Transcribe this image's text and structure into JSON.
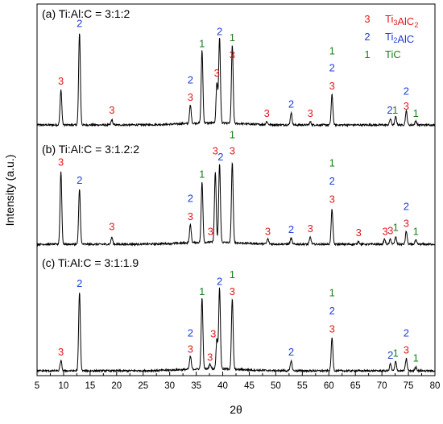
{
  "chart_data": {
    "type": "line",
    "xlabel": "2θ",
    "ylabel": "Intensity (a.u.)",
    "xlim": [
      5,
      80
    ],
    "x_ticks": [
      "5",
      "10",
      "15",
      "20",
      "25",
      "30",
      "35",
      "40",
      "45",
      "50",
      "55",
      "60",
      "65",
      "70",
      "75",
      "80"
    ],
    "legend": [
      {
        "marker": "3",
        "label": "Ti",
        "sub1": "3",
        "label_mid": "AlC",
        "sub2": "2",
        "color": "#e41a1c"
      },
      {
        "marker": "2",
        "label": "Ti",
        "sub1": "2",
        "label_mid": "AlC",
        "sub2": "",
        "color": "#1f3fd6"
      },
      {
        "marker": "1",
        "label": "TiC",
        "sub1": "",
        "label_mid": "",
        "sub2": "",
        "color": "#1a7f1a"
      }
    ],
    "colors": {
      "3": "#e41a1c",
      "2": "#1f3fd6",
      "1": "#1a7f1a"
    },
    "panels": [
      {
        "title": "(a) Ti:Al:C = 3:1:2",
        "peaks": [
          [
            9.5,
            0.35
          ],
          [
            13.0,
            0.92
          ],
          [
            19.1,
            0.05
          ],
          [
            33.9,
            0.18
          ],
          [
            36.1,
            0.72
          ],
          [
            38.9,
            0.4
          ],
          [
            39.4,
            0.85
          ],
          [
            41.8,
            0.78
          ],
          [
            48.3,
            0.03
          ],
          [
            52.9,
            0.12
          ],
          [
            56.5,
            0.03
          ],
          [
            60.6,
            0.3
          ],
          [
            71.6,
            0.06
          ],
          [
            72.6,
            0.08
          ],
          [
            74.6,
            0.14
          ],
          [
            76.4,
            0.04
          ]
        ],
        "labels": [
          {
            "x": 9.5,
            "t": "3",
            "lvl": 0.37
          },
          {
            "x": 13.0,
            "t": "2",
            "lvl": 0.94
          },
          {
            "x": 19.1,
            "t": "3",
            "lvl": 0.08
          },
          {
            "x": 33.9,
            "t": "3",
            "lvl": 0.21
          },
          {
            "x": 33.9,
            "t": "2",
            "lvl": 0.38
          },
          {
            "x": 36.1,
            "t": "1",
            "lvl": 0.74
          },
          {
            "x": 38.9,
            "t": "3",
            "lvl": 0.45
          },
          {
            "x": 39.4,
            "t": "2",
            "lvl": 0.86
          },
          {
            "x": 41.8,
            "t": "3",
            "lvl": 0.63
          },
          {
            "x": 41.8,
            "t": "1",
            "lvl": 0.8
          },
          {
            "x": 48.3,
            "t": "3",
            "lvl": 0.05
          },
          {
            "x": 52.9,
            "t": "2",
            "lvl": 0.14
          },
          {
            "x": 56.5,
            "t": "3",
            "lvl": 0.05
          },
          {
            "x": 60.6,
            "t": "3",
            "lvl": 0.32
          },
          {
            "x": 60.6,
            "t": "2",
            "lvl": 0.5
          },
          {
            "x": 60.6,
            "t": "1",
            "lvl": 0.67
          },
          {
            "x": 71.5,
            "t": "2",
            "lvl": 0.08
          },
          {
            "x": 72.5,
            "t": "1",
            "lvl": 0.08
          },
          {
            "x": 74.6,
            "t": "3",
            "lvl": 0.12
          },
          {
            "x": 74.6,
            "t": "2",
            "lvl": 0.27
          },
          {
            "x": 76.4,
            "t": "1",
            "lvl": 0.05
          }
        ]
      },
      {
        "title": "(b) Ti:Al:C = 3:1.2:2",
        "peaks": [
          [
            9.5,
            0.72
          ],
          [
            13.0,
            0.55
          ],
          [
            19.1,
            0.07
          ],
          [
            33.9,
            0.18
          ],
          [
            36.1,
            0.6
          ],
          [
            38.6,
            0.7
          ],
          [
            39.4,
            0.78
          ],
          [
            41.8,
            0.8
          ],
          [
            48.5,
            0.05
          ],
          [
            52.9,
            0.06
          ],
          [
            56.5,
            0.07
          ],
          [
            60.6,
            0.35
          ],
          [
            65.6,
            0.03
          ],
          [
            70.5,
            0.05
          ],
          [
            71.6,
            0.05
          ],
          [
            72.6,
            0.07
          ],
          [
            74.6,
            0.13
          ],
          [
            76.4,
            0.04
          ]
        ],
        "labels": [
          {
            "x": 9.5,
            "t": "3",
            "lvl": 0.75
          },
          {
            "x": 13.0,
            "t": "2",
            "lvl": 0.57
          },
          {
            "x": 19.1,
            "t": "3",
            "lvl": 0.11
          },
          {
            "x": 33.9,
            "t": "3",
            "lvl": 0.21
          },
          {
            "x": 33.9,
            "t": "2",
            "lvl": 0.39
          },
          {
            "x": 36.1,
            "t": "1",
            "lvl": 0.63
          },
          {
            "x": 37.7,
            "t": "3",
            "lvl": 0.06
          },
          {
            "x": 38.6,
            "t": "3",
            "lvl": 0.86
          },
          {
            "x": 39.6,
            "t": "2",
            "lvl": 0.8
          },
          {
            "x": 41.8,
            "t": "3",
            "lvl": 0.86
          },
          {
            "x": 41.8,
            "t": "1",
            "lvl": 1.02
          },
          {
            "x": 48.5,
            "t": "3",
            "lvl": 0.06
          },
          {
            "x": 52.9,
            "t": "2",
            "lvl": 0.08
          },
          {
            "x": 56.5,
            "t": "3",
            "lvl": 0.09
          },
          {
            "x": 60.6,
            "t": "3",
            "lvl": 0.38
          },
          {
            "x": 60.6,
            "t": "2",
            "lvl": 0.56
          },
          {
            "x": 60.6,
            "t": "1",
            "lvl": 0.74
          },
          {
            "x": 65.6,
            "t": "3",
            "lvl": 0.05
          },
          {
            "x": 70.6,
            "t": "3",
            "lvl": 0.06
          },
          {
            "x": 71.6,
            "t": "3",
            "lvl": 0.07
          },
          {
            "x": 72.6,
            "t": "1",
            "lvl": 0.1
          },
          {
            "x": 74.6,
            "t": "3",
            "lvl": 0.14
          },
          {
            "x": 74.6,
            "t": "2",
            "lvl": 0.31
          },
          {
            "x": 76.4,
            "t": "1",
            "lvl": 0.06
          }
        ]
      },
      {
        "title": "(c) Ti:Al:C = 3:1:1.9",
        "peaks": [
          [
            9.5,
            0.1
          ],
          [
            13.0,
            0.78
          ],
          [
            33.9,
            0.13
          ],
          [
            36.1,
            0.7
          ],
          [
            37.6,
            0.05
          ],
          [
            38.9,
            0.3
          ],
          [
            39.4,
            0.8
          ],
          [
            41.8,
            0.7
          ],
          [
            52.9,
            0.1
          ],
          [
            60.6,
            0.33
          ],
          [
            71.6,
            0.07
          ],
          [
            72.6,
            0.09
          ],
          [
            74.6,
            0.12
          ],
          [
            76.4,
            0.04
          ]
        ],
        "labels": [
          {
            "x": 9.5,
            "t": "3",
            "lvl": 0.12
          },
          {
            "x": 13.0,
            "t": "2",
            "lvl": 0.8
          },
          {
            "x": 33.9,
            "t": "3",
            "lvl": 0.15
          },
          {
            "x": 33.9,
            "t": "2",
            "lvl": 0.31
          },
          {
            "x": 36.1,
            "t": "1",
            "lvl": 0.72
          },
          {
            "x": 37.6,
            "t": "3",
            "lvl": 0.07
          },
          {
            "x": 38.2,
            "t": "3",
            "lvl": 0.3
          },
          {
            "x": 39.4,
            "t": "2",
            "lvl": 0.82
          },
          {
            "x": 41.8,
            "t": "3",
            "lvl": 0.72
          },
          {
            "x": 41.8,
            "t": "1",
            "lvl": 0.89
          },
          {
            "x": 52.9,
            "t": "2",
            "lvl": 0.12
          },
          {
            "x": 60.6,
            "t": "3",
            "lvl": 0.35
          },
          {
            "x": 60.6,
            "t": "2",
            "lvl": 0.53
          },
          {
            "x": 60.6,
            "t": "1",
            "lvl": 0.71
          },
          {
            "x": 71.6,
            "t": "2",
            "lvl": 0.09
          },
          {
            "x": 72.6,
            "t": "1",
            "lvl": 0.11
          },
          {
            "x": 74.6,
            "t": "3",
            "lvl": 0.14
          },
          {
            "x": 74.6,
            "t": "2",
            "lvl": 0.31
          },
          {
            "x": 76.4,
            "t": "1",
            "lvl": 0.06
          }
        ]
      }
    ]
  }
}
